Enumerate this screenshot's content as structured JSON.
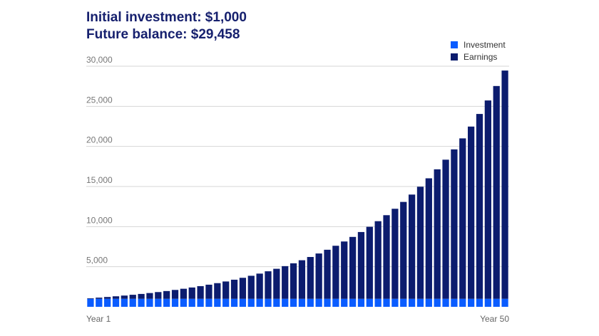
{
  "header": {
    "line1": "Initial investment: $1,000",
    "line2": "Future balance: $29,458"
  },
  "chart_data": {
    "type": "bar",
    "stacked": true,
    "title": "",
    "x_labels": {
      "first": "Year 1",
      "last": "Year 50"
    },
    "ylim": [
      0,
      30000
    ],
    "yticks": [
      5000,
      10000,
      15000,
      20000,
      25000,
      30000
    ],
    "ytick_labels": [
      "5,000",
      "10,000",
      "15,000",
      "20,000",
      "25,000",
      "30,000"
    ],
    "grid": true,
    "legend_placement": "top-right",
    "series": [
      {
        "name": "Investment",
        "color": "#0a5cff",
        "values": [
          1000,
          1000,
          1000,
          1000,
          1000,
          1000,
          1000,
          1000,
          1000,
          1000,
          1000,
          1000,
          1000,
          1000,
          1000,
          1000,
          1000,
          1000,
          1000,
          1000,
          1000,
          1000,
          1000,
          1000,
          1000,
          1000,
          1000,
          1000,
          1000,
          1000,
          1000,
          1000,
          1000,
          1000,
          1000,
          1000,
          1000,
          1000,
          1000,
          1000,
          1000,
          1000,
          1000,
          1000,
          1000,
          1000,
          1000,
          1000,
          1000,
          1000
        ]
      },
      {
        "name": "Earnings",
        "color": "#0c1c6e",
        "values": [
          70,
          145,
          225,
          311,
          403,
          501,
          606,
          718,
          838,
          967,
          1105,
          1252,
          1410,
          1579,
          1759,
          1952,
          2159,
          2380,
          2617,
          2870,
          3141,
          3430,
          3741,
          4072,
          4427,
          4807,
          5214,
          5649,
          6114,
          6612,
          7145,
          7715,
          8325,
          8978,
          9677,
          10424,
          11224,
          12079,
          12995,
          13974,
          15023,
          16144,
          17344,
          18628,
          20002,
          21473,
          23046,
          24729,
          26530,
          28458
        ]
      }
    ]
  }
}
